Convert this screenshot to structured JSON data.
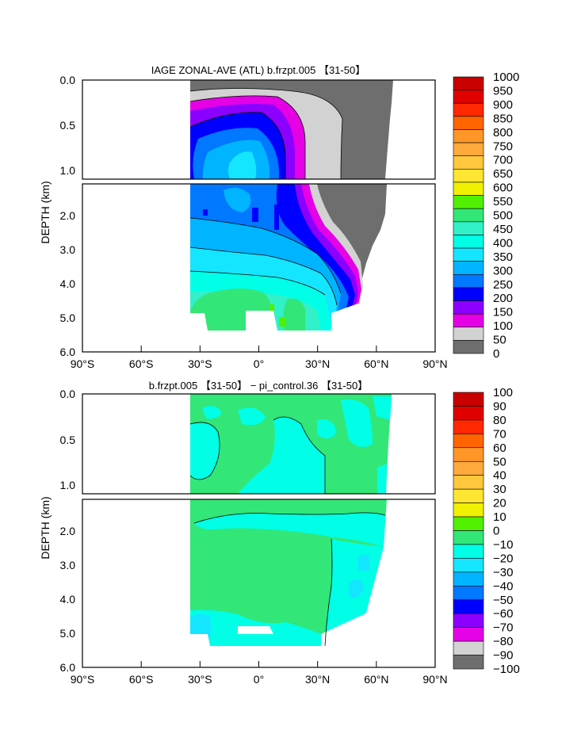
{
  "chart_data": [
    {
      "type": "heatmap",
      "title": "IAGE ZONAL-AVE (ATL) b.frzpt.005 【31-50】",
      "xlabel": "",
      "ylabel": "DEPTH (km)",
      "x_ticks": [
        "90°S",
        "60°S",
        "30°S",
        "0°",
        "30°N",
        "60°N",
        "90°N"
      ],
      "y_ticks_upper": [
        "0.0",
        "0.5",
        "1.0"
      ],
      "y_ticks_lower": [
        "2.0",
        "3.0",
        "4.0",
        "5.0",
        "6.0"
      ],
      "xlim": [
        -90,
        90
      ],
      "ylim": [
        0,
        6
      ],
      "colorbar_labels": [
        "1000",
        "950",
        "900",
        "850",
        "800",
        "750",
        "700",
        "650",
        "600",
        "550",
        "500",
        "450",
        "400",
        "350",
        "300",
        "250",
        "200",
        "150",
        "100",
        "50",
        "0"
      ],
      "colorbar_colors": [
        "#c80000",
        "#e00000",
        "#ff2800",
        "#ff6400",
        "#ff9628",
        "#ffaa3c",
        "#ffc83c",
        "#ffe632",
        "#f0f000",
        "#50f000",
        "#32e678",
        "#32f0c8",
        "#00ffe6",
        "#14e6ff",
        "#00b4ff",
        "#0078ff",
        "#0000ff",
        "#8c00ff",
        "#e600e6",
        "#d2d2d2",
        "#6e6e6e"
      ],
      "fields": [
        {
          "lat": -35,
          "depth": 0.3,
          "value": 40
        },
        {
          "lat": 55,
          "depth": 0.5,
          "value": 20
        },
        {
          "lat": -5,
          "depth": 0.9,
          "value": 380
        },
        {
          "lat": -10,
          "depth": 2.0,
          "value": 330
        },
        {
          "lat": 10,
          "depth": 3.5,
          "value": 420
        },
        {
          "lat": -15,
          "depth": 4.7,
          "value": 530
        },
        {
          "lat": 45,
          "depth": 3.5,
          "value": 200
        }
      ]
    },
    {
      "type": "heatmap",
      "title": "b.frzpt.005 【31-50】 − pi_control.36 【31-50】",
      "xlabel": "",
      "ylabel": "DEPTH (km)",
      "x_ticks": [
        "90°S",
        "60°S",
        "30°S",
        "0°",
        "30°N",
        "60°N",
        "90°N"
      ],
      "y_ticks_upper": [
        "0.0",
        "0.5",
        "1.0"
      ],
      "y_ticks_lower": [
        "2.0",
        "3.0",
        "4.0",
        "5.0",
        "6.0"
      ],
      "xlim": [
        -90,
        90
      ],
      "ylim": [
        0,
        6
      ],
      "colorbar_labels": [
        "100",
        "90",
        "80",
        "70",
        "60",
        "50",
        "40",
        "30",
        "20",
        "10",
        "0",
        "−10",
        "−20",
        "−30",
        "−40",
        "−50",
        "−60",
        "−70",
        "−80",
        "−90",
        "−100"
      ],
      "colorbar_colors": [
        "#c80000",
        "#e00000",
        "#ff2800",
        "#ff6400",
        "#ff9628",
        "#ffaa3c",
        "#ffc83c",
        "#ffe632",
        "#f0f000",
        "#50f000",
        "#32e678",
        "#00ffe6",
        "#14e6ff",
        "#00b4ff",
        "#0078ff",
        "#0000ff",
        "#8c00ff",
        "#e600e6",
        "#d2d2d2",
        "#6e6e6e"
      ],
      "fields": [
        {
          "lat": -10,
          "depth": 0.3,
          "value": 5
        },
        {
          "lat": 10,
          "depth": 0.8,
          "value": -5
        },
        {
          "lat": -10,
          "depth": 1.5,
          "value": -5
        },
        {
          "lat": 0,
          "depth": 3.5,
          "value": 5
        },
        {
          "lat": 50,
          "depth": 3.5,
          "value": -10
        },
        {
          "lat": -20,
          "depth": 5.0,
          "value": -5
        }
      ]
    }
  ]
}
